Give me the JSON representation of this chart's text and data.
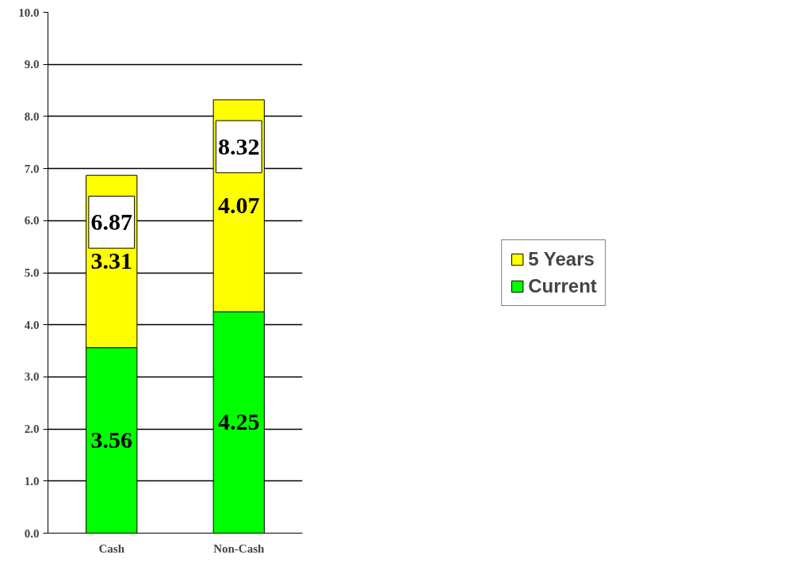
{
  "chart_data": {
    "type": "bar",
    "stacked": true,
    "categories": [
      "Cash",
      "Non-Cash"
    ],
    "series": [
      {
        "name": "Current",
        "color": "#00ff00",
        "values": [
          3.56,
          4.25
        ]
      },
      {
        "name": "5 Years",
        "color": "#ffff00",
        "values": [
          3.31,
          4.07
        ]
      }
    ],
    "totals": [
      "6.87",
      "8.32"
    ],
    "ylim": [
      0,
      10
    ],
    "yticks": [
      {
        "value": 0,
        "label": "0.0"
      },
      {
        "value": 1,
        "label": "1.0"
      },
      {
        "value": 2,
        "label": "2.0"
      },
      {
        "value": 3,
        "label": "3.0"
      },
      {
        "value": 4,
        "label": "4.0"
      },
      {
        "value": 5,
        "label": "5.0"
      },
      {
        "value": 6,
        "label": "6.0"
      },
      {
        "value": 7,
        "label": "7.0"
      },
      {
        "value": 8,
        "label": "8.0"
      },
      {
        "value": 9,
        "label": "9.0"
      },
      {
        "value": 10,
        "label": "10.0"
      }
    ],
    "grid": "y",
    "legend": "right",
    "data_labels": true
  }
}
